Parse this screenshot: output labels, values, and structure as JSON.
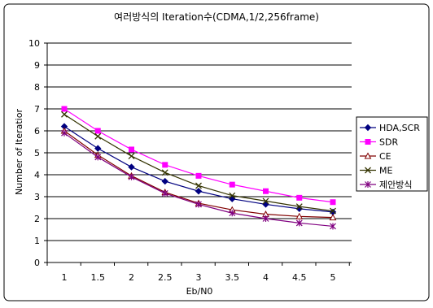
{
  "chart_data": {
    "type": "line",
    "title": "여러방식의 Iteration수(CDMA,1/2,256frame)",
    "xlabel": "Eb/N0",
    "ylabel": "Number of Iteratior",
    "categories": [
      "1",
      "1.5",
      "2",
      "2.5",
      "3",
      "3.5",
      "4",
      "4.5",
      "5"
    ],
    "x": [
      1,
      1.5,
      2,
      2.5,
      3,
      3.5,
      4,
      4.5,
      5
    ],
    "ylim": [
      0,
      10
    ],
    "yticks": [
      "0",
      "1",
      "2",
      "3",
      "4",
      "5",
      "6",
      "7",
      "8",
      "9",
      "10"
    ],
    "grid": "horizontal",
    "legend_position": "right",
    "series": [
      {
        "name": "HDA,SCR",
        "color": "#000080",
        "marker": "diamond",
        "values": [
          6.2,
          5.2,
          4.35,
          3.7,
          3.25,
          2.9,
          2.65,
          2.45,
          2.3
        ]
      },
      {
        "name": "SDR",
        "color": "#ff00ff",
        "marker": "square",
        "values": [
          7.0,
          6.0,
          5.15,
          4.45,
          3.95,
          3.55,
          3.25,
          2.95,
          2.75
        ]
      },
      {
        "name": "CE",
        "color": "#800000",
        "marker": "triangle",
        "values": [
          6.0,
          4.9,
          3.95,
          3.2,
          2.7,
          2.4,
          2.2,
          2.1,
          2.05
        ]
      },
      {
        "name": "ME",
        "color": "#333300",
        "marker": "x",
        "values": [
          6.75,
          5.75,
          4.85,
          4.1,
          3.5,
          3.05,
          2.8,
          2.55,
          2.35
        ]
      },
      {
        "name": "제안방식",
        "color": "#800080",
        "marker": "star",
        "values": [
          5.9,
          4.8,
          3.9,
          3.15,
          2.65,
          2.25,
          2.0,
          1.8,
          1.65
        ]
      }
    ]
  }
}
